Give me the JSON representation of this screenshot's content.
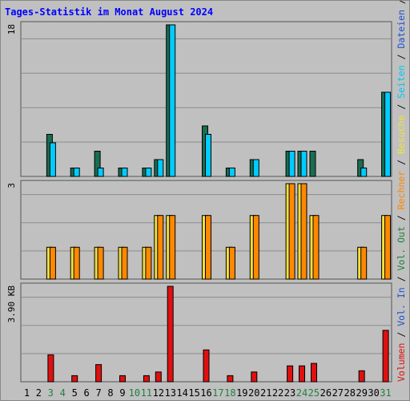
{
  "colors": {
    "background": "#c0c0c0",
    "frame": "#555555",
    "grid": "#8c8c8c",
    "title": "#0000ff",
    "weekend_tick": "#208040",
    "anfragen": "#186e50",
    "dateien": "#00ccff",
    "seiten": "#00c8f0",
    "besuche": "#f0e040",
    "rechner": "#ff8800",
    "vol_out": "#208040",
    "vol_in": "#2050d0",
    "volumen": "#e01010",
    "separator": "#000000"
  },
  "chart_data": {
    "type": "bar",
    "title": "Tages-Statistik im Monat August 2024",
    "x": [
      "1",
      "2",
      "3",
      "4",
      "5",
      "6",
      "7",
      "8",
      "9",
      "10",
      "11",
      "12",
      "13",
      "14",
      "15",
      "16",
      "17",
      "18",
      "19",
      "20",
      "21",
      "22",
      "23",
      "24",
      "25",
      "26",
      "27",
      "28",
      "29",
      "30",
      "31"
    ],
    "weekend_days": [
      "3",
      "4",
      "10",
      "11",
      "17",
      "18",
      "24",
      "25",
      "31"
    ],
    "panels": [
      {
        "ylabel_max": "18",
        "ylim": [
          0,
          18
        ],
        "series": [
          {
            "name": "Anfragen",
            "color": "#186e50",
            "values": [
              0,
              0,
              5,
              0,
              1,
              0,
              3,
              0,
              1,
              0,
              1,
              2,
              18,
              0,
              0,
              6,
              0,
              1,
              0,
              2,
              0,
              0,
              3,
              3,
              3,
              0,
              0,
              0,
              2,
              0,
              10
            ]
          },
          {
            "name": "Dateien",
            "color": "#00ccff",
            "values": [
              0,
              0,
              4,
              0,
              1,
              0,
              1,
              0,
              1,
              0,
              1,
              2,
              18,
              0,
              0,
              5,
              0,
              1,
              0,
              2,
              0,
              0,
              3,
              3,
              0,
              0,
              0,
              0,
              1,
              0,
              10
            ]
          },
          {
            "name": "Seiten",
            "color": "#00c8f0",
            "values": []
          }
        ]
      },
      {
        "ylabel_max": "3",
        "ylim": [
          0,
          3
        ],
        "series": [
          {
            "name": "Besuche",
            "color": "#f0e040",
            "values": [
              0,
              0,
              1,
              0,
              1,
              0,
              1,
              0,
              1,
              0,
              1,
              2,
              2,
              0,
              0,
              2,
              0,
              1,
              0,
              2,
              0,
              0,
              3,
              3,
              2,
              0,
              0,
              0,
              1,
              0,
              2
            ]
          },
          {
            "name": "Rechner",
            "color": "#ff8800",
            "values": [
              0,
              0,
              1,
              0,
              1,
              0,
              1,
              0,
              1,
              0,
              1,
              2,
              2,
              0,
              0,
              2,
              0,
              1,
              0,
              2,
              0,
              0,
              3,
              3,
              2,
              0,
              0,
              0,
              1,
              0,
              2
            ]
          }
        ]
      },
      {
        "ylabel_max": "3.90 KB",
        "ylim": [
          0,
          3.9
        ],
        "series": [
          {
            "name": "Volumen",
            "color": "#e01010",
            "values": [
              0,
              0,
              1.1,
              0,
              0.25,
              0,
              0.7,
              0,
              0.25,
              0,
              0.25,
              0.4,
              3.9,
              0,
              0,
              1.3,
              0,
              0.25,
              0,
              0.4,
              0,
              0,
              0.65,
              0.65,
              0.75,
              0,
              0,
              0,
              0.45,
              0,
              2.1
            ]
          }
        ]
      }
    ],
    "legend_right": [
      {
        "text": "Anfragen",
        "color": "#186e50"
      },
      {
        "text": "Dateien",
        "color": "#2050d0"
      },
      {
        "text": "Seiten",
        "color": "#00c8f0"
      },
      {
        "text": "Besuche",
        "color": "#f0e040"
      },
      {
        "text": "Rechner",
        "color": "#ff8800"
      },
      {
        "text": "Vol. Out",
        "color": "#208040"
      },
      {
        "text": "Vol. In",
        "color": "#2050d0"
      },
      {
        "text": "Volumen",
        "color": "#e01010"
      }
    ],
    "legend_separator": "/",
    "grid": true
  }
}
